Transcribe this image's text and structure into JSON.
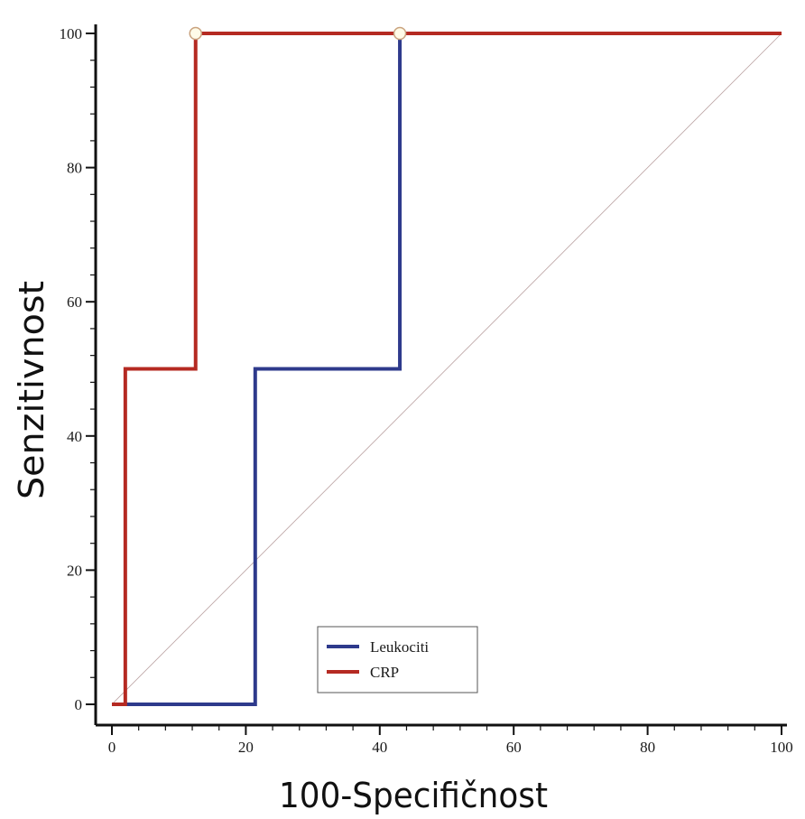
{
  "chart_data": {
    "type": "line",
    "xlabel": "100-Specifičnost",
    "ylabel": "Senzitivnost",
    "xlim": [
      0,
      100
    ],
    "ylim": [
      0,
      100
    ],
    "x_ticks": [
      0,
      20,
      40,
      60,
      80,
      100
    ],
    "y_ticks": [
      0,
      20,
      40,
      60,
      80,
      100
    ],
    "grid": false,
    "legend_position": "bottom-center",
    "series": [
      {
        "name": "Leukociti",
        "color": "#2e3a8c",
        "x": [
          0,
          21.4,
          21.4,
          43.0,
          43.0,
          100
        ],
        "y": [
          0,
          0,
          50,
          50,
          100,
          100
        ]
      },
      {
        "name": "CRP",
        "color": "#b52a22",
        "x": [
          0,
          2.0,
          2.0,
          12.5,
          12.5,
          100
        ],
        "y": [
          0,
          0,
          50,
          50,
          100,
          100
        ]
      }
    ],
    "reference_line": {
      "x": [
        0,
        100
      ],
      "y": [
        0,
        100
      ],
      "color": "#b9a0a0"
    },
    "optimal_points": [
      {
        "x": 12.5,
        "y": 100
      },
      {
        "x": 43.0,
        "y": 100
      }
    ]
  }
}
